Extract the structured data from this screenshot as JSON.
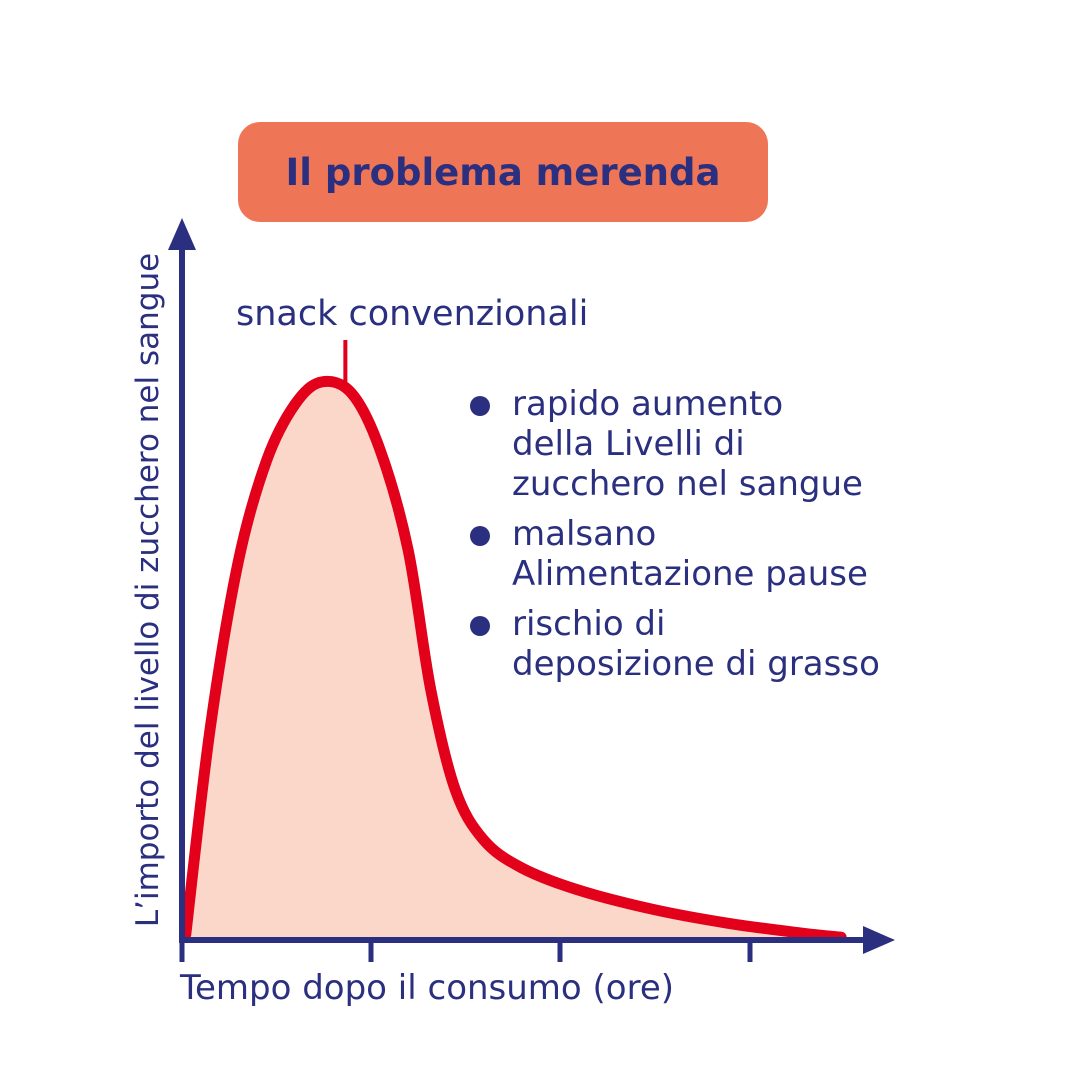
{
  "colors": {
    "navy": "#2b2f7f",
    "curve": "#e2001a",
    "fill": "#fbd7c9",
    "title_bg": "#ee7657",
    "background": "#ffffff"
  },
  "chart_data": {
    "type": "area",
    "title": "Il problema merenda",
    "xlabel": "Tempo dopo il consumo (ore)",
    "ylabel": "L’importo del livello di zucchero nel sangue",
    "x_ticks": [
      "",
      "",
      ""
    ],
    "xlim": [
      0,
      3.6
    ],
    "ylim": [
      0,
      1
    ],
    "series": [
      {
        "name": "snack convenzionali",
        "points": [
          [
            0.02,
            0.01
          ],
          [
            0.15,
            0.38
          ],
          [
            0.3,
            0.68
          ],
          [
            0.45,
            0.86
          ],
          [
            0.6,
            0.96
          ],
          [
            0.74,
            1.0
          ],
          [
            0.9,
            0.98
          ],
          [
            1.05,
            0.88
          ],
          [
            1.2,
            0.7
          ],
          [
            1.32,
            0.45
          ],
          [
            1.45,
            0.27
          ],
          [
            1.6,
            0.18
          ],
          [
            1.8,
            0.13
          ],
          [
            2.1,
            0.09
          ],
          [
            2.5,
            0.055
          ],
          [
            2.9,
            0.03
          ],
          [
            3.3,
            0.012
          ],
          [
            3.5,
            0.005
          ]
        ]
      }
    ],
    "annotations": [
      "rapido aumento\ndella Livelli di\nzucchero nel sangue",
      "malsano\nAlimentazione pause",
      "rischio di\ndeposizione di grasso"
    ]
  }
}
